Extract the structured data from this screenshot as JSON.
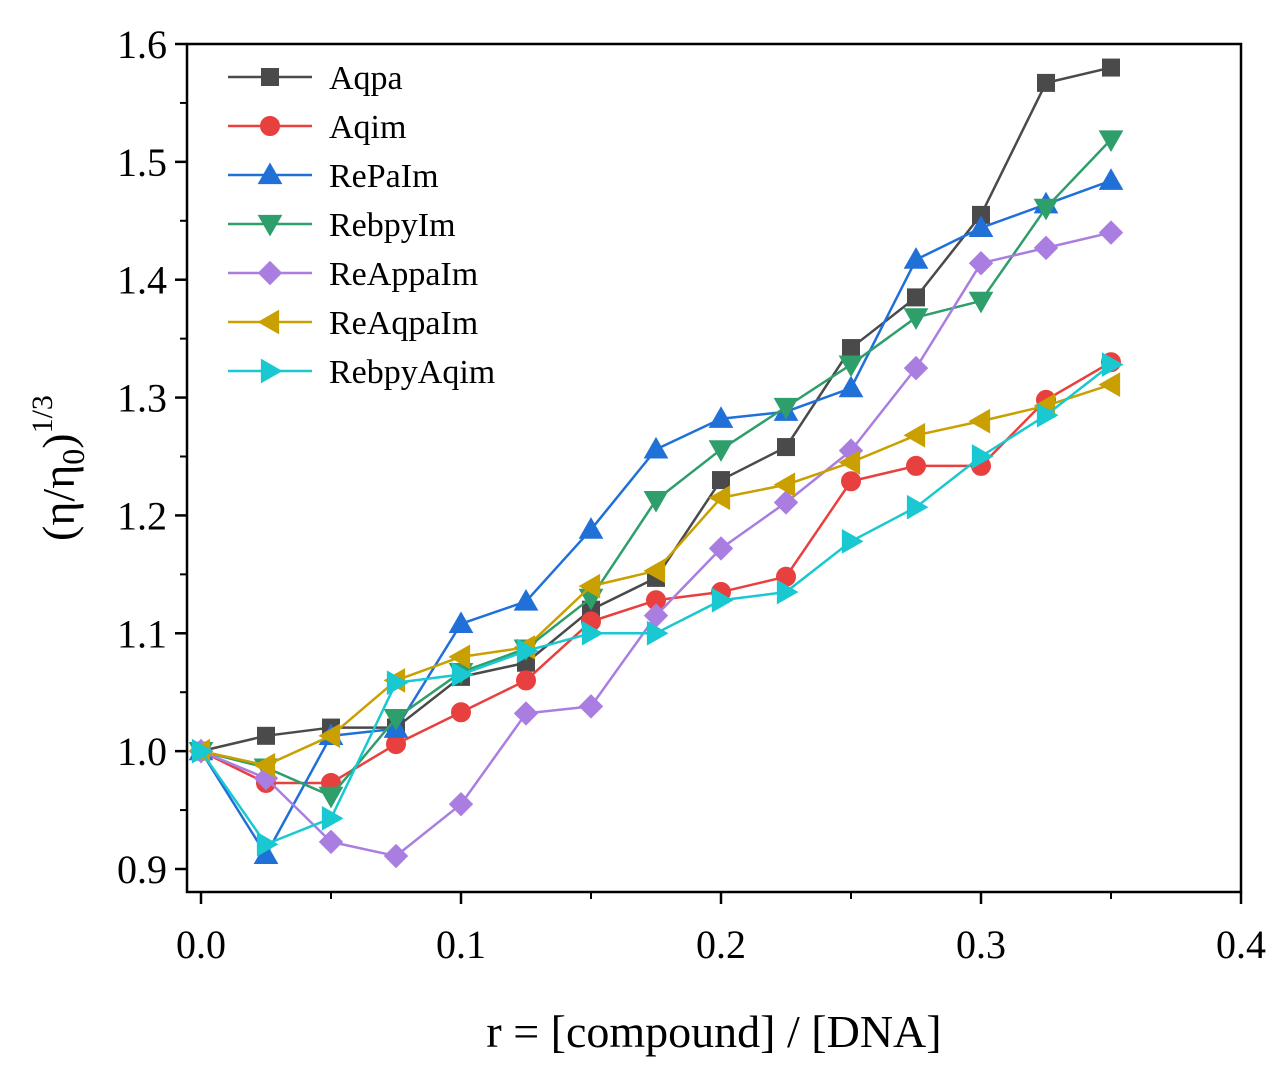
{
  "chart_data": {
    "type": "line",
    "title": "",
    "xlabel": "r = [compound] / [DNA]",
    "ylabel_main": "(η/η",
    "ylabel_sub": "0",
    "ylabel_close": ")",
    "ylabel_sup": "1/3",
    "xlim": [
      0.0,
      0.4
    ],
    "ylim": [
      0.885,
      1.6
    ],
    "xticks": [
      0.0,
      0.1,
      0.2,
      0.3,
      0.4
    ],
    "xtick_labels": [
      "0.0",
      "0.1",
      "0.2",
      "0.3",
      "0.4"
    ],
    "yticks": [
      0.9,
      1.0,
      1.1,
      1.2,
      1.3,
      1.4,
      1.5,
      1.6
    ],
    "ytick_labels": [
      "0.9",
      "1.0",
      "1.1",
      "1.2",
      "1.3",
      "1.4",
      "1.5",
      "1.6"
    ],
    "legend_position": "top-left",
    "x": [
      0.0,
      0.025,
      0.05,
      0.075,
      0.1,
      0.125,
      0.15,
      0.175,
      0.2,
      0.225,
      0.25,
      0.275,
      0.3,
      0.325,
      0.35
    ],
    "series": [
      {
        "name": "Aqpa",
        "color": "#4a4a4a",
        "marker": "square",
        "values": [
          1.0,
          1.013,
          1.02,
          1.02,
          1.063,
          1.075,
          1.12,
          1.147,
          1.23,
          1.258,
          1.342,
          1.385,
          1.455,
          1.567,
          1.58
        ]
      },
      {
        "name": "Aqim",
        "color": "#e8403f",
        "marker": "circle",
        "values": [
          1.0,
          0.973,
          0.973,
          1.006,
          1.033,
          1.06,
          1.11,
          1.128,
          1.135,
          1.148,
          1.229,
          1.242,
          1.242,
          1.298,
          1.33
        ]
      },
      {
        "name": "RePaIm",
        "color": "#2070d8",
        "marker": "triangle-up",
        "values": [
          1.0,
          0.912,
          1.013,
          1.019,
          1.108,
          1.127,
          1.188,
          1.256,
          1.282,
          1.288,
          1.308,
          1.417,
          1.444,
          1.464,
          1.484
        ]
      },
      {
        "name": "RebpyIm",
        "color": "#2e9e6a",
        "marker": "triangle-down",
        "values": [
          1.0,
          0.986,
          0.962,
          1.028,
          1.067,
          1.087,
          1.13,
          1.213,
          1.256,
          1.292,
          1.328,
          1.368,
          1.382,
          1.461,
          1.519
        ]
      },
      {
        "name": "ReAppaIm",
        "color": "#a97ee0",
        "marker": "diamond",
        "values": [
          1.0,
          0.977,
          0.923,
          0.911,
          0.955,
          1.032,
          1.038,
          1.115,
          1.172,
          1.211,
          1.255,
          1.325,
          1.414,
          1.427,
          1.44
        ]
      },
      {
        "name": "ReAqpaIm",
        "color": "#c9a000",
        "marker": "triangle-left",
        "values": [
          1.0,
          0.988,
          1.013,
          1.06,
          1.08,
          1.088,
          1.14,
          1.153,
          1.215,
          1.226,
          1.245,
          1.268,
          1.28,
          1.293,
          1.311
        ]
      },
      {
        "name": "RebpyAqim",
        "color": "#19c8d0",
        "marker": "triangle-right",
        "values": [
          1.0,
          0.921,
          0.943,
          1.058,
          1.065,
          1.085,
          1.1,
          1.1,
          1.128,
          1.135,
          1.178,
          1.207,
          1.25,
          1.285,
          1.328
        ]
      }
    ]
  }
}
